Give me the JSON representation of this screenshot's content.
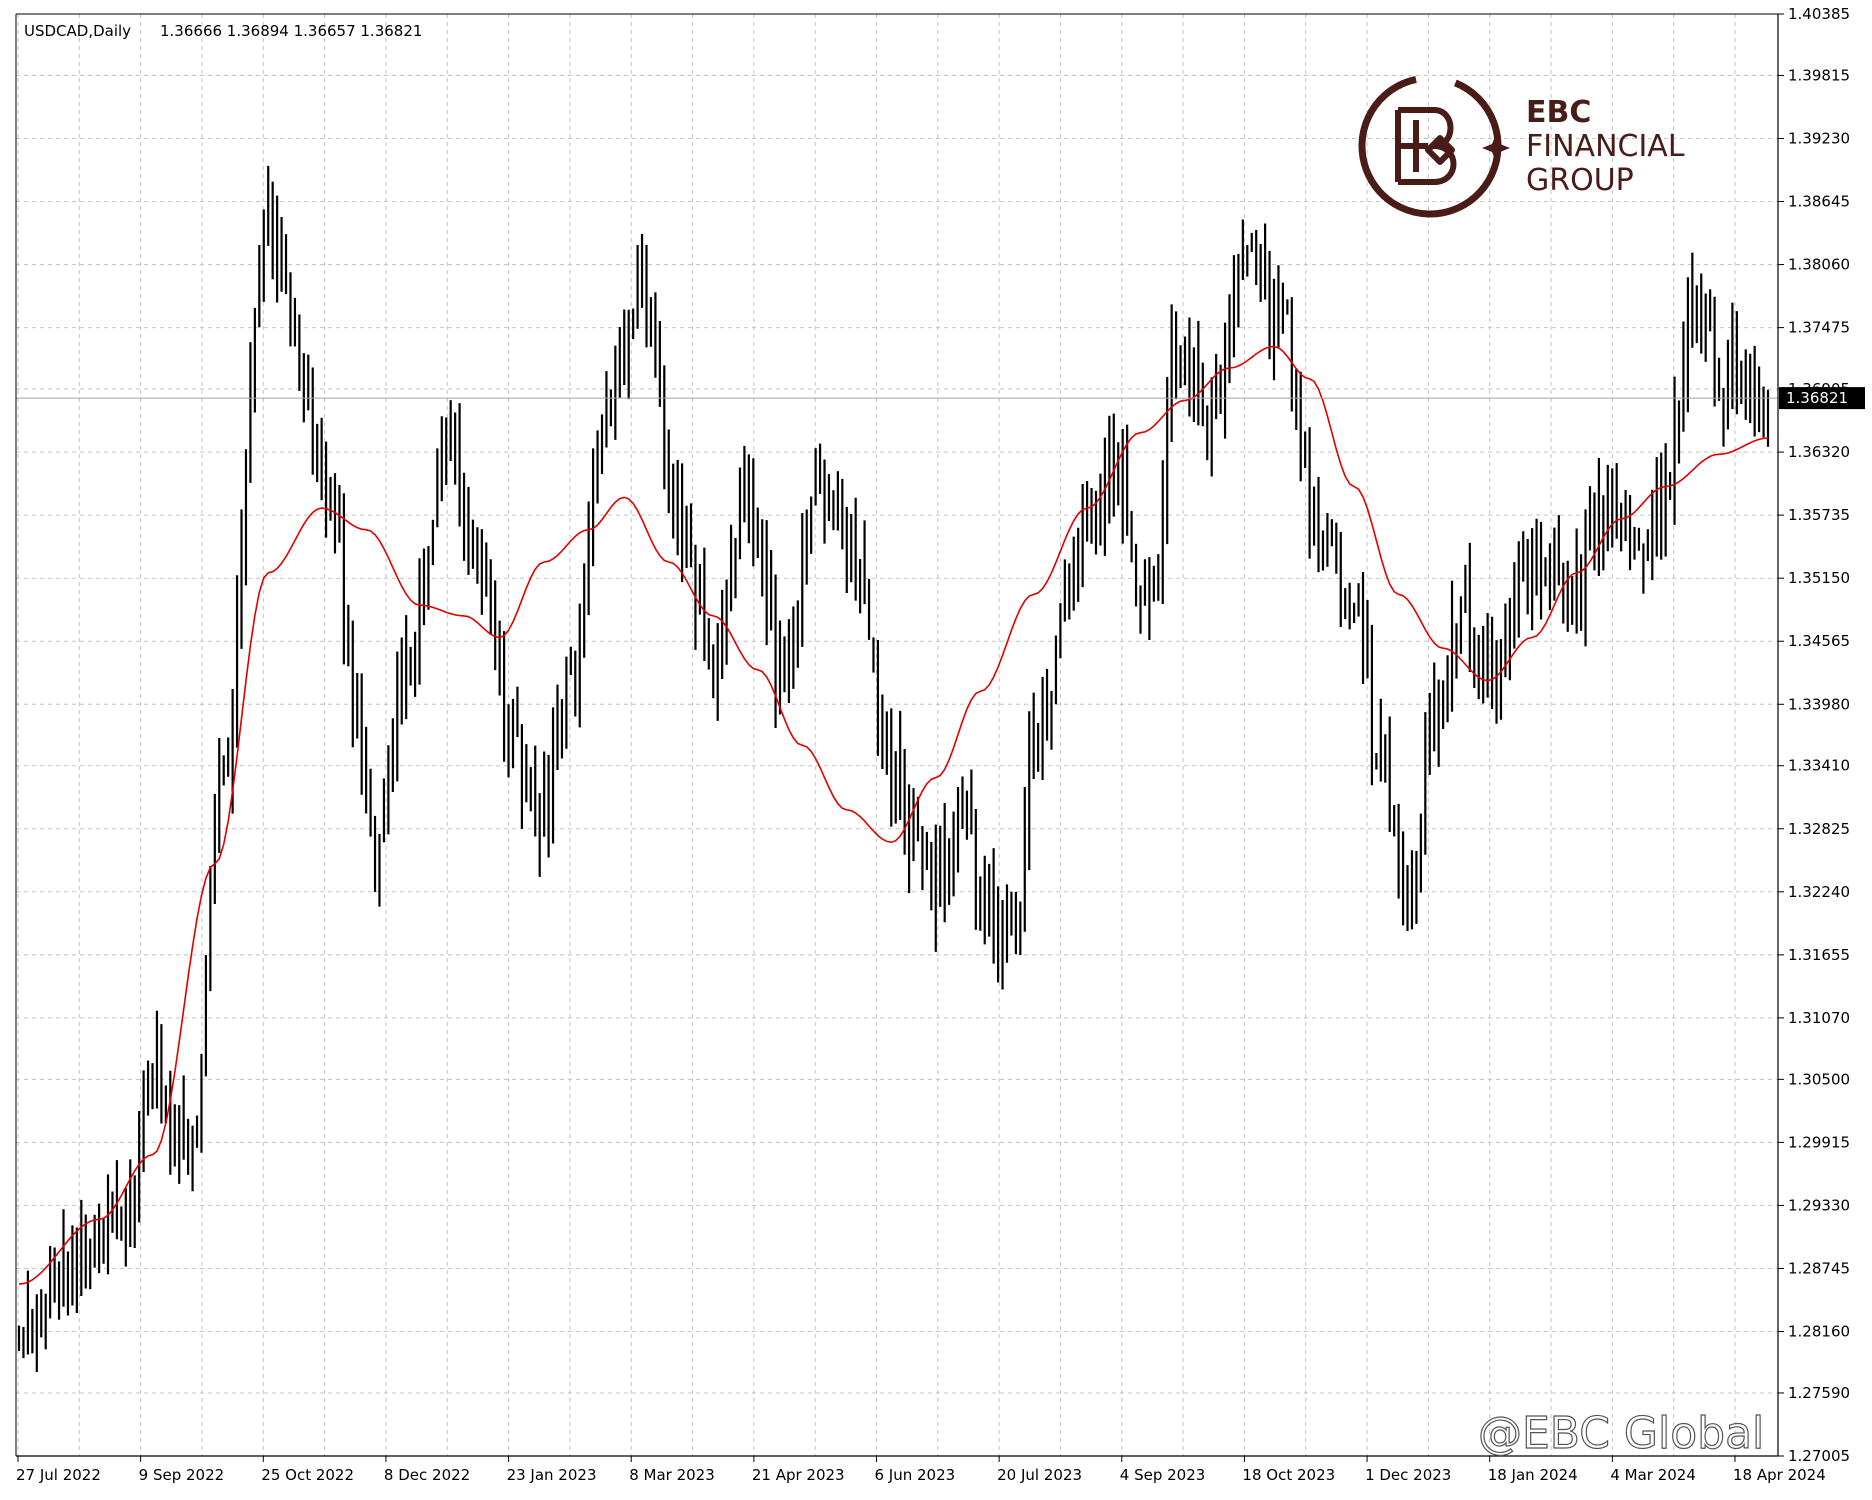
{
  "header": {
    "symbol": "USDCAD,Daily",
    "ohlc": "1.36666 1.36894 1.36657 1.36821"
  },
  "logo": {
    "line1": "EBC",
    "line2": "FINANCIAL",
    "line3": "GROUP"
  },
  "watermark": "@EBC Global",
  "colors": {
    "bars": "#000000",
    "ma": "#e00000",
    "grid": "#c0c0c0",
    "brand": "#4a1c17"
  },
  "chart_data": {
    "type": "bar",
    "ohlc_style": "hl-bars",
    "ylim": [
      1.27005,
      1.40385
    ],
    "y_ticks": [
      "1.40385",
      "1.39815",
      "1.39230",
      "1.38645",
      "1.38060",
      "1.37475",
      "1.36905",
      "1.36320",
      "1.35735",
      "1.35150",
      "1.34565",
      "1.33980",
      "1.33410",
      "1.32825",
      "1.32240",
      "1.31655",
      "1.31070",
      "1.30500",
      "1.29915",
      "1.29330",
      "1.28745",
      "1.28160",
      "1.27590",
      "1.27005"
    ],
    "x_labels": [
      "27 Jul 2022",
      "9 Sep 2022",
      "25 Oct 2022",
      "8 Dec 2022",
      "23 Jan 2023",
      "8 Mar 2023",
      "21 Apr 2023",
      "6 Jun 2023",
      "20 Jul 2023",
      "4 Sep 2023",
      "18 Oct 2023",
      "1 Dec 2023",
      "18 Jan 2024",
      "4 Mar 2024",
      "18 Apr 2024"
    ],
    "last_price": "1.36821",
    "price_anchors": [
      [
        0,
        1.28
      ],
      [
        12,
        1.288
      ],
      [
        22,
        1.291
      ],
      [
        30,
        1.305
      ],
      [
        38,
        1.298
      ],
      [
        46,
        1.335
      ],
      [
        56,
        1.385
      ],
      [
        70,
        1.36
      ],
      [
        76,
        1.34
      ],
      [
        80,
        1.327
      ],
      [
        88,
        1.345
      ],
      [
        96,
        1.364
      ],
      [
        104,
        1.352
      ],
      [
        110,
        1.338
      ],
      [
        118,
        1.33
      ],
      [
        124,
        1.342
      ],
      [
        132,
        1.368
      ],
      [
        140,
        1.378
      ],
      [
        148,
        1.356
      ],
      [
        156,
        1.344
      ],
      [
        164,
        1.36
      ],
      [
        172,
        1.342
      ],
      [
        180,
        1.36
      ],
      [
        188,
        1.352
      ],
      [
        196,
        1.335
      ],
      [
        204,
        1.323
      ],
      [
        212,
        1.328
      ],
      [
        222,
        1.317
      ],
      [
        230,
        1.34
      ],
      [
        238,
        1.356
      ],
      [
        246,
        1.362
      ],
      [
        254,
        1.348
      ],
      [
        260,
        1.374
      ],
      [
        268,
        1.365
      ],
      [
        276,
        1.383
      ],
      [
        284,
        1.374
      ],
      [
        292,
        1.356
      ],
      [
        300,
        1.348
      ],
      [
        306,
        1.335
      ],
      [
        312,
        1.32
      ],
      [
        318,
        1.338
      ],
      [
        324,
        1.348
      ],
      [
        332,
        1.344
      ],
      [
        340,
        1.352
      ],
      [
        348,
        1.35
      ],
      [
        356,
        1.358
      ],
      [
        364,
        1.352
      ],
      [
        370,
        1.36
      ],
      [
        376,
        1.378
      ],
      [
        382,
        1.37
      ],
      [
        388,
        1.37
      ],
      [
        393,
        1.3682
      ]
    ],
    "ma_anchors": [
      [
        0,
        1.286
      ],
      [
        18,
        1.292
      ],
      [
        30,
        1.298
      ],
      [
        44,
        1.325
      ],
      [
        56,
        1.352
      ],
      [
        68,
        1.358
      ],
      [
        78,
        1.356
      ],
      [
        90,
        1.349
      ],
      [
        100,
        1.348
      ],
      [
        108,
        1.346
      ],
      [
        118,
        1.353
      ],
      [
        128,
        1.356
      ],
      [
        136,
        1.359
      ],
      [
        146,
        1.353
      ],
      [
        156,
        1.348
      ],
      [
        166,
        1.343
      ],
      [
        176,
        1.336
      ],
      [
        186,
        1.33
      ],
      [
        196,
        1.327
      ],
      [
        206,
        1.333
      ],
      [
        216,
        1.341
      ],
      [
        228,
        1.35
      ],
      [
        240,
        1.358
      ],
      [
        252,
        1.365
      ],
      [
        262,
        1.368
      ],
      [
        272,
        1.371
      ],
      [
        282,
        1.373
      ],
      [
        290,
        1.37
      ],
      [
        300,
        1.36
      ],
      [
        310,
        1.35
      ],
      [
        320,
        1.345
      ],
      [
        330,
        1.342
      ],
      [
        340,
        1.346
      ],
      [
        350,
        1.352
      ],
      [
        360,
        1.357
      ],
      [
        370,
        1.36
      ],
      [
        382,
        1.363
      ],
      [
        393,
        1.3645
      ]
    ],
    "bar_count": 394,
    "grid": true,
    "moving_average": true
  }
}
